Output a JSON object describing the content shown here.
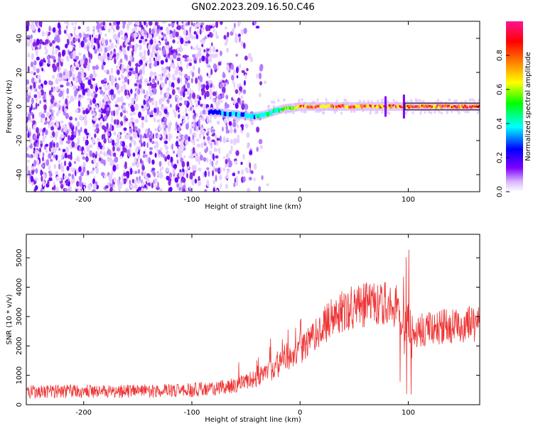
{
  "title": "GN02.2023.209.16.50.C46",
  "colors": {
    "snr_line": "#ee3333",
    "axis": "#000000",
    "cmap": [
      "#ffffff",
      "#e9d5ff",
      "#7f00ff",
      "#0000ff",
      "#00ffff",
      "#00ff00",
      "#ffff00",
      "#ff7f00",
      "#ff0000",
      "#ff1493"
    ]
  },
  "chart_data": [
    {
      "type": "heatmap",
      "title": "GN02.2023.209.16.50.C46",
      "xlabel": "Height of straight line (km)",
      "ylabel": "Frequency (Hz)",
      "xlim": [
        -253,
        166
      ],
      "ylim": [
        -50,
        50
      ],
      "x_ticks": [
        -200,
        -100,
        0,
        100
      ],
      "y_ticks": [
        -40,
        -20,
        0,
        20,
        40
      ],
      "colorbar": {
        "label": "Normalized spectral amplitude",
        "range": [
          0,
          1
        ],
        "ticks": [
          0.0,
          0.2,
          0.4,
          0.6,
          0.8
        ]
      },
      "signal_track": {
        "description_points_x": [
          -85,
          -70,
          -55,
          -45,
          -35,
          -25,
          -15,
          -5,
          0,
          20,
          40,
          60,
          75,
          80,
          95,
          100,
          130,
          166
        ],
        "freq_hz": [
          -3,
          -4,
          -5,
          -6,
          -5,
          -3,
          -1,
          -0.5,
          0,
          0,
          0,
          0,
          0,
          0,
          0,
          0,
          0,
          0
        ],
        "amplitude": [
          0.25,
          0.3,
          0.35,
          0.4,
          0.45,
          0.5,
          0.6,
          0.7,
          0.8,
          0.85,
          0.85,
          0.85,
          0.8,
          0.75,
          0.85,
          0.9,
          0.9,
          0.9
        ]
      }
    },
    {
      "type": "line",
      "xlabel": "Height of straight line (km)",
      "ylabel": "SNR (10 * v/v)",
      "xlim": [
        -253,
        166
      ],
      "ylim": [
        0,
        5800
      ],
      "x_ticks": [
        -200,
        -100,
        0,
        100
      ],
      "y_ticks": [
        0,
        1000,
        2000,
        3000,
        4000,
        5000
      ],
      "series": [
        {
          "x": [
            -253,
            -220,
            -200,
            -180,
            -160,
            -140,
            -120,
            -100,
            -80,
            -60,
            -40,
            -20,
            0,
            10,
            20,
            30,
            40,
            50,
            60,
            70,
            80,
            85,
            88,
            92,
            95,
            100,
            103,
            110,
            120,
            140,
            166
          ],
          "y": [
            450,
            450,
            450,
            460,
            460,
            470,
            480,
            500,
            550,
            650,
            900,
            1300,
            1800,
            2200,
            2600,
            3000,
            3200,
            3350,
            3400,
            3450,
            3450,
            3200,
            3500,
            2800,
            2500,
            2800,
            2600,
            2500,
            2600,
            2700,
            2800
          ]
        }
      ]
    }
  ]
}
